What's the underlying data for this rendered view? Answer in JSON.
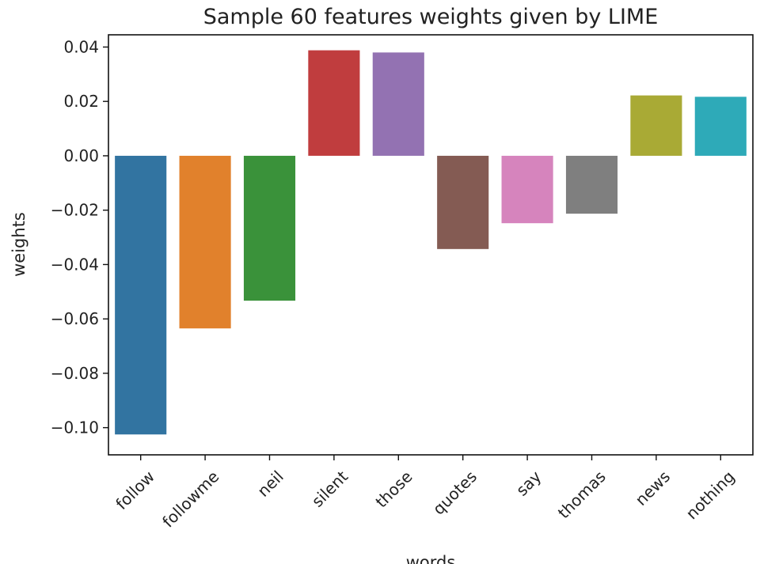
{
  "chart_data": {
    "type": "bar",
    "title": "Sample 60 features weights given by LIME",
    "xlabel": "words",
    "ylabel": "weights",
    "categories": [
      "follow",
      "followme",
      "neil",
      "silent",
      "those",
      "quotes",
      "say",
      "thomas",
      "news",
      "nothing"
    ],
    "values": [
      -0.1025,
      -0.0635,
      -0.0533,
      0.0388,
      0.038,
      -0.0343,
      -0.0248,
      -0.0213,
      0.0222,
      0.0217
    ],
    "colors": [
      "#3274a1",
      "#e1812c",
      "#3a923a",
      "#c03d3e",
      "#9372b2",
      "#845b53",
      "#d684bd",
      "#7f7f7f",
      "#a9aa35",
      "#2eaab8"
    ],
    "ylim": [
      -0.11,
      0.0445
    ],
    "yticks": [
      0.04,
      0.02,
      0.0,
      -0.02,
      -0.04,
      -0.06,
      -0.08,
      -0.1
    ],
    "ytick_labels": [
      "0.04",
      "0.02",
      "0.00",
      "−0.02",
      "−0.04",
      "−0.06",
      "−0.08",
      "−0.10"
    ],
    "grid": false
  }
}
